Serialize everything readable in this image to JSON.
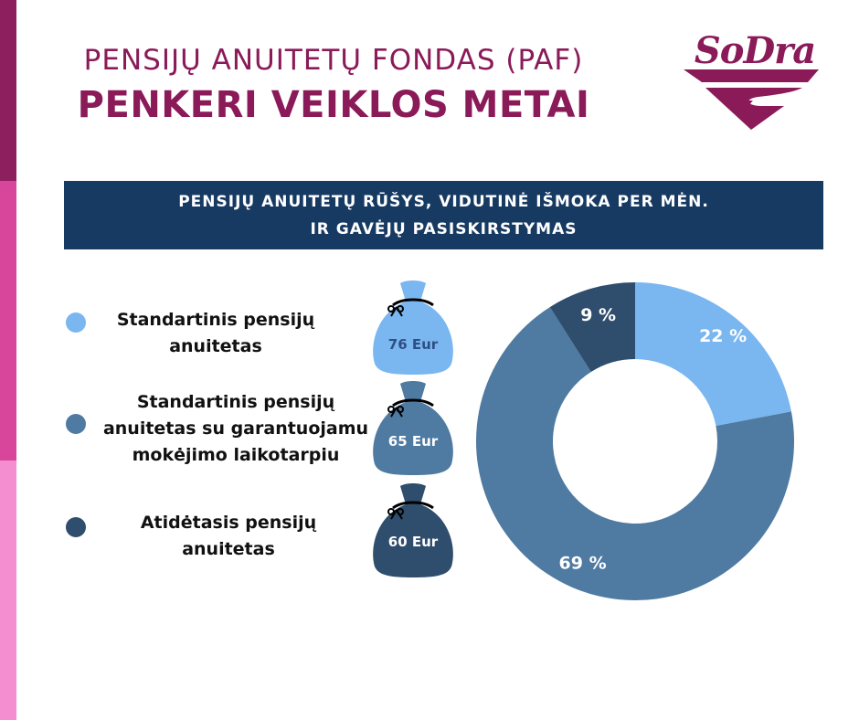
{
  "header": {
    "title_line1": "PENSIJŲ ANUITETŲ FONDAS (PAF)",
    "title_line2": "PENKERI VEIKLOS METAI"
  },
  "logo": {
    "text": "SoDra"
  },
  "banner": {
    "line1": "PENSIJŲ ANUITETŲ RŪŠYS, VIDUTINĖ IŠMOKA PER MĖN.",
    "line2": "IR GAVĖJŲ PASISKIRSTYMAS"
  },
  "legend": [
    {
      "label_lines": [
        "Standartinis pensijų",
        "anuitetas"
      ],
      "color": "#7ab6ef",
      "amount": "76 Eur",
      "amount_color": "#2e4f86"
    },
    {
      "label_lines": [
        "Standartinis pensijų",
        "anuitetas su garantuojamu",
        "mokėjimo laikotarpiu"
      ],
      "color": "#4f7aa1",
      "amount": "65 Eur",
      "amount_color": "#ffffff"
    },
    {
      "label_lines": [
        "Atidėtasis pensijų",
        "anuitetas"
      ],
      "color": "#2f4d6c",
      "amount": "60 Eur",
      "amount_color": "#ffffff"
    }
  ],
  "chart_data": {
    "type": "pie",
    "variant": "donut",
    "categories": [
      "Standartinis pensijų anuitetas",
      "Standartinis pensijų anuitetas su garantuojamu mokėjimo laikotarpiu",
      "Atidėtasis pensijų anuitetas"
    ],
    "values": [
      22,
      69,
      9
    ],
    "labels": [
      "22 %",
      "69 %",
      "9 %"
    ],
    "colors": [
      "#7ab6ef",
      "#4f7aa1",
      "#2f4d6c"
    ],
    "unit": "%"
  }
}
